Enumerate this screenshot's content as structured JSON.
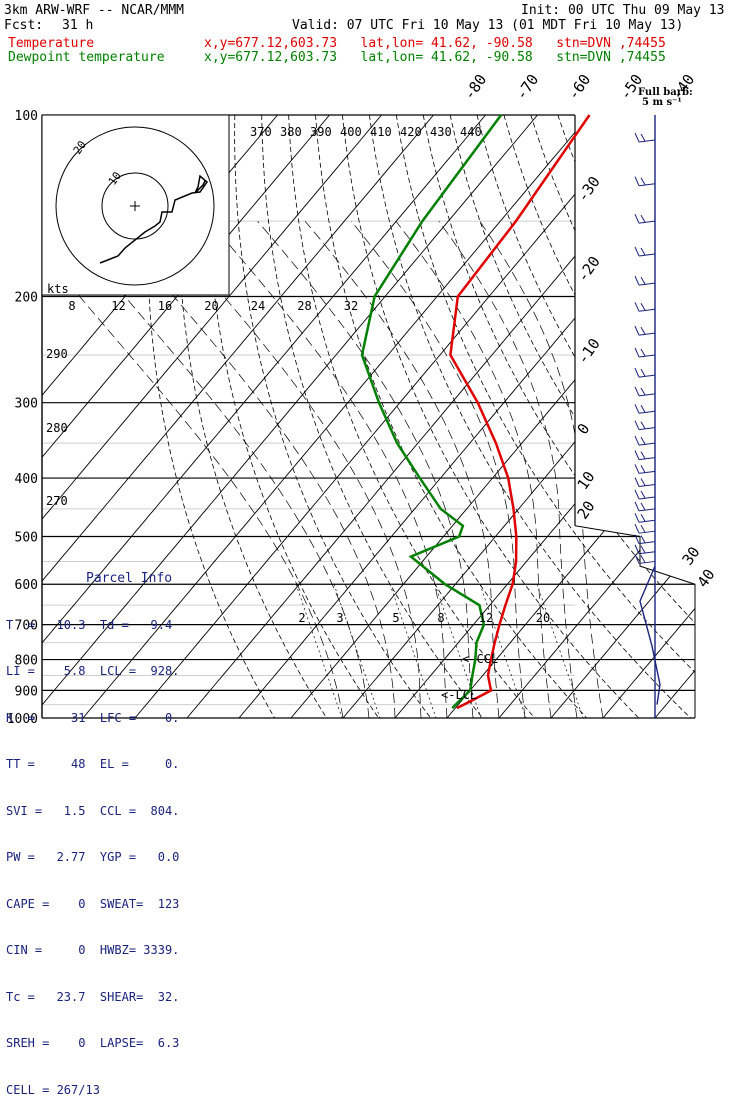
{
  "header": {
    "model": "3km ARW-WRF -- NCAR/MMM",
    "init": "Init: 00 UTC Thu 09 May 13",
    "fcst_label": "Fcst:",
    "fcst_value": "31 h",
    "valid": "Valid: 07 UTC Fri 10 May 13 (01 MDT Fri 10 May 13)"
  },
  "legend": {
    "temperature": {
      "label": "Temperature",
      "info": "x,y=677.12,603.73   lat,lon= 41.62, -90.58   stn=DVN ,74455",
      "color": "#e00000"
    },
    "dewpoint": {
      "label": "Dewpoint temperature",
      "info": "x,y=677.12,603.73   lat,lon= 41.62, -90.58   stn=DVN ,74455",
      "color": "#008000"
    }
  },
  "wind_barb_legend": {
    "line1": "Full barb:",
    "line2": "5 m s⁻¹"
  },
  "parcel_info": {
    "title": "Parcel Info",
    "rows": [
      "T  =   10.3  Td =   9.4",
      "LI =    5.8  LCL =  928.",
      "K  =     31  LFC =    0.",
      "TT =     48  EL =     0.",
      "SVI =   1.5  CCL =  804.",
      "PW =   2.77  YGP =   0.0",
      "CAPE =    0  SWEAT=  123",
      "CIN =     0  HWBZ= 3339.",
      "Tc =   23.7  SHEAR=  32.",
      "SREH =    0  LAPSE=  6.3",
      "CELL = 267/13"
    ]
  },
  "chart_data": {
    "type": "line",
    "subtype": "skew-T log-p diagram",
    "y_axis": {
      "label": "",
      "ticks": [
        100,
        200,
        300,
        400,
        500,
        600,
        700,
        800,
        900,
        1000
      ],
      "scale": "log",
      "units": "hPa"
    },
    "isotherm_labels": [
      -80,
      -70,
      -60,
      -50,
      -40,
      -30,
      -20,
      -10,
      0,
      10,
      20,
      30,
      40
    ],
    "theta_labels": [
      370,
      380,
      390,
      400,
      410,
      420,
      430,
      440
    ],
    "theta_lower_labels": [
      290,
      280,
      270
    ],
    "mixing_ratio_labels": [
      2,
      3,
      5,
      8,
      12,
      20
    ],
    "hodograph": {
      "unit_label": "kts",
      "speed_labels": [
        8,
        12,
        16,
        20,
        24,
        28,
        32
      ],
      "ring_labels": [
        10,
        20
      ]
    },
    "annotations": [
      {
        "text": "<-CCL",
        "p": 804
      },
      {
        "text": "<-LCL",
        "p": 928
      }
    ],
    "series": [
      {
        "name": "Temperature",
        "color": "#e00000",
        "points": [
          [
            100,
            -60
          ],
          [
            150,
            -57
          ],
          [
            200,
            -56
          ],
          [
            250,
            -48
          ],
          [
            300,
            -35
          ],
          [
            350,
            -25
          ],
          [
            400,
            -17
          ],
          [
            450,
            -11
          ],
          [
            500,
            -6
          ],
          [
            550,
            -2
          ],
          [
            600,
            1
          ],
          [
            650,
            3
          ],
          [
            700,
            5
          ],
          [
            750,
            7
          ],
          [
            800,
            9
          ],
          [
            850,
            11
          ],
          [
            900,
            14
          ],
          [
            935,
            12
          ],
          [
            963,
            10.3
          ]
        ]
      },
      {
        "name": "Dewpoint temperature",
        "color": "#008000",
        "points": [
          [
            100,
            -77
          ],
          [
            150,
            -75
          ],
          [
            200,
            -72
          ],
          [
            250,
            -65
          ],
          [
            300,
            -54
          ],
          [
            350,
            -44
          ],
          [
            400,
            -34
          ],
          [
            450,
            -25
          ],
          [
            480,
            -18
          ],
          [
            500,
            -17
          ],
          [
            540,
            -23
          ],
          [
            600,
            -12
          ],
          [
            650,
            -2
          ],
          [
            700,
            2
          ],
          [
            750,
            3.5
          ],
          [
            800,
            6
          ],
          [
            850,
            8
          ],
          [
            900,
            10
          ],
          [
            940,
            9.6
          ],
          [
            963,
            9.4
          ]
        ]
      }
    ]
  }
}
